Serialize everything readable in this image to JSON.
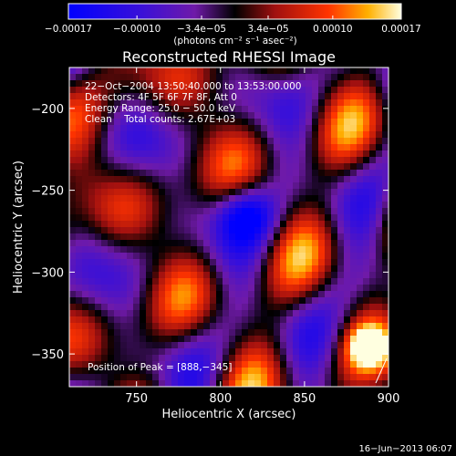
{
  "chart_data": {
    "type": "heatmap",
    "title": "Reconstructed RHESSI Image",
    "xlabel": "Heliocentric X (arcsec)",
    "ylabel": "Heliocentric Y (arcsec)",
    "xlim": [
      710,
      900
    ],
    "ylim": [
      -370,
      -175
    ],
    "x_ticks": [
      750,
      800,
      850,
      900
    ],
    "x_tick_labels": [
      "750",
      "800",
      "850",
      "900"
    ],
    "y_ticks": [
      -200,
      -250,
      -300,
      -350
    ],
    "y_tick_labels": [
      "−200",
      "−250",
      "−300",
      "−350"
    ],
    "colorbar": {
      "range": [
        -0.00017,
        0.00017
      ],
      "tick_values": [
        -0.00017,
        -0.0001,
        -3.4e-05,
        3.4e-05,
        0.0001,
        0.00017
      ],
      "tick_labels": [
        "−0.00017",
        "−0.00010",
        "−3.4e−05",
        "3.4e−05",
        "0.00010",
        "0.00017"
      ],
      "units": "(photons cm⁻² s⁻¹ asec⁻²)"
    },
    "annotations": [
      "22−Oct−2004 13:50:40.000 to 13:53:00.000",
      "Detectors: 4F 5F 6F 7F 8F, Att 0",
      "Energy Range: 25.0 − 50.0 keV",
      "Clean    Total counts: 2.67E+03"
    ],
    "peak_label": "Position of Peak = [888,−345]",
    "peak": [
      888,
      -345
    ],
    "footer": "16−Jun−2013 06:07"
  }
}
